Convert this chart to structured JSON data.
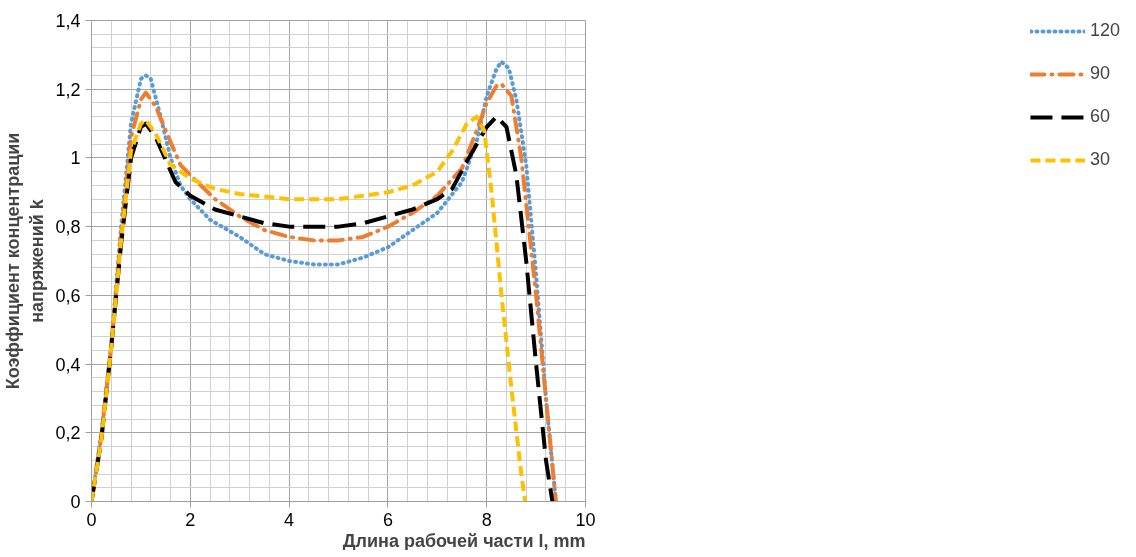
{
  "chart_data": {
    "type": "line",
    "xlabel": "Длина рабочей части l, mm",
    "ylabel": "Коэффициент концентрации\nнапряжений k",
    "xlim": [
      0,
      10
    ],
    "ylim": [
      0,
      1.4
    ],
    "xticks": [
      0,
      2,
      4,
      6,
      8,
      10
    ],
    "yticks": [
      0,
      {
        "value": 0.2,
        "label": "0,2"
      },
      {
        "value": 0.4,
        "label": "0,4"
      },
      {
        "value": 0.6,
        "label": "0,6"
      },
      {
        "value": 0.8,
        "label": "0,8"
      },
      1,
      {
        "value": 1.2,
        "label": "1,2"
      },
      {
        "value": 1.4,
        "label": "1,4"
      }
    ],
    "grid": true,
    "legend": "right",
    "marker": "none",
    "series": [
      {
        "name": "120",
        "color": "#5b9bd5",
        "line_style": "dotted",
        "x": [
          0,
          0.2,
          0.4,
          0.6,
          0.8,
          1.0,
          1.1,
          1.2,
          1.4,
          1.6,
          1.8,
          2.0,
          2.4,
          3.0,
          3.5,
          4.0,
          4.5,
          5.0,
          5.5,
          6.0,
          6.5,
          7.0,
          7.5,
          7.8,
          8.0,
          8.2,
          8.3,
          8.45,
          8.6,
          8.8,
          9.0,
          9.2,
          9.4
        ],
        "values": [
          0,
          0.2,
          0.46,
          0.8,
          1.1,
          1.23,
          1.24,
          1.23,
          1.12,
          1.0,
          0.92,
          0.88,
          0.82,
          0.77,
          0.72,
          0.7,
          0.69,
          0.69,
          0.71,
          0.74,
          0.79,
          0.84,
          0.93,
          1.05,
          1.18,
          1.26,
          1.28,
          1.26,
          1.17,
          0.98,
          0.66,
          0.3,
          0
        ]
      },
      {
        "name": "90",
        "color": "#ed7d31",
        "line_style": "dashdot",
        "x": [
          0,
          0.2,
          0.4,
          0.6,
          0.8,
          1.0,
          1.1,
          1.3,
          1.5,
          1.8,
          2.0,
          2.5,
          3.0,
          3.5,
          4.0,
          4.5,
          5.0,
          5.5,
          6.0,
          6.5,
          7.0,
          7.5,
          7.8,
          8.0,
          8.2,
          8.3,
          8.5,
          8.7,
          9.0,
          9.2,
          9.4
        ],
        "values": [
          0,
          0.19,
          0.45,
          0.78,
          1.06,
          1.17,
          1.19,
          1.15,
          1.08,
          0.98,
          0.95,
          0.88,
          0.83,
          0.79,
          0.77,
          0.76,
          0.76,
          0.77,
          0.8,
          0.84,
          0.89,
          0.97,
          1.08,
          1.16,
          1.21,
          1.215,
          1.18,
          1.0,
          0.6,
          0.3,
          0
        ]
      },
      {
        "name": "60",
        "color": "#000000",
        "line_style": "longdash",
        "x": [
          0,
          0.2,
          0.4,
          0.6,
          0.8,
          1.0,
          1.1,
          1.3,
          1.7,
          2.0,
          2.5,
          3.0,
          3.5,
          4.0,
          4.5,
          5.0,
          5.5,
          6.0,
          6.5,
          7.0,
          7.3,
          7.6,
          8.0,
          8.2,
          8.4,
          8.6,
          8.8,
          9.0,
          9.2,
          9.33
        ],
        "values": [
          0,
          0.18,
          0.45,
          0.75,
          1.0,
          1.09,
          1.1,
          1.06,
          0.93,
          0.89,
          0.85,
          0.83,
          0.81,
          0.8,
          0.8,
          0.8,
          0.81,
          0.83,
          0.85,
          0.88,
          0.91,
          0.99,
          1.09,
          1.12,
          1.09,
          0.95,
          0.7,
          0.4,
          0.12,
          0
        ]
      },
      {
        "name": "30",
        "color": "#ffc000",
        "line_style": "dashed",
        "x": [
          0,
          0.2,
          0.4,
          0.6,
          0.8,
          1.0,
          1.1,
          1.3,
          1.6,
          2.0,
          2.5,
          3.0,
          4.0,
          5.0,
          6.0,
          6.5,
          7.0,
          7.3,
          7.6,
          7.8,
          7.95,
          8.1,
          8.3,
          8.5,
          8.7,
          8.78
        ],
        "values": [
          0,
          0.18,
          0.45,
          0.76,
          1.02,
          1.1,
          1.11,
          1.07,
          0.98,
          0.94,
          0.91,
          0.895,
          0.88,
          0.88,
          0.9,
          0.92,
          0.96,
          1.02,
          1.1,
          1.12,
          1.08,
          0.9,
          0.6,
          0.33,
          0.08,
          0
        ]
      }
    ]
  }
}
